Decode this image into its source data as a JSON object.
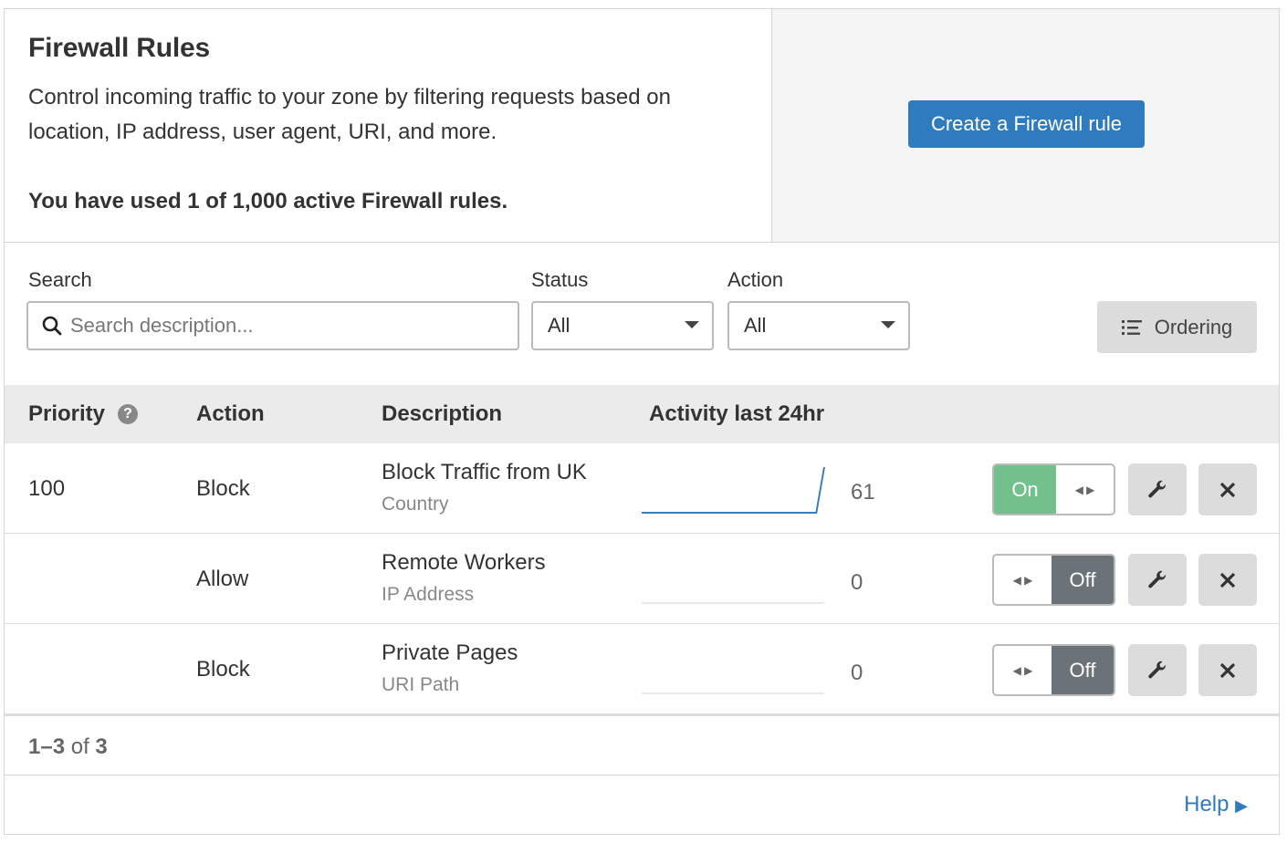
{
  "header": {
    "title": "Firewall Rules",
    "description": "Control incoming traffic to your zone by filtering requests based on location, IP address, user agent, URI, and more.",
    "usage": "You have used 1 of 1,000 active Firewall rules.",
    "create_label": "Create a Firewall rule"
  },
  "filters": {
    "search_label": "Search",
    "search_placeholder": "Search description...",
    "status_label": "Status",
    "status_value": "All",
    "action_label": "Action",
    "action_value": "All",
    "ordering_label": "Ordering"
  },
  "table": {
    "columns": [
      "Priority",
      "Action",
      "Description",
      "Activity last 24hr"
    ],
    "rows": [
      {
        "priority": "100",
        "action": "Block",
        "description": "Block Traffic from UK",
        "type": "Country",
        "activity": "61",
        "enabled": true,
        "toggle_label": "On",
        "sparkline": [
          0,
          0,
          0,
          0,
          0,
          0,
          0,
          0,
          0,
          0,
          0,
          0,
          0,
          0,
          0,
          0,
          0,
          0,
          0,
          0,
          0,
          0,
          0,
          61
        ]
      },
      {
        "priority": "",
        "action": "Allow",
        "description": "Remote Workers",
        "type": "IP Address",
        "activity": "0",
        "enabled": false,
        "toggle_label": "Off",
        "sparkline": [
          0,
          0,
          0,
          0,
          0,
          0,
          0,
          0,
          0,
          0,
          0,
          0,
          0,
          0,
          0,
          0,
          0,
          0,
          0,
          0,
          0,
          0,
          0,
          0
        ]
      },
      {
        "priority": "",
        "action": "Block",
        "description": "Private Pages",
        "type": "URI Path",
        "activity": "0",
        "enabled": false,
        "toggle_label": "Off",
        "sparkline": [
          0,
          0,
          0,
          0,
          0,
          0,
          0,
          0,
          0,
          0,
          0,
          0,
          0,
          0,
          0,
          0,
          0,
          0,
          0,
          0,
          0,
          0,
          0,
          0
        ]
      }
    ]
  },
  "pagination": {
    "range": "1–3",
    "of": "of",
    "total": "3"
  },
  "help_label": "Help",
  "colors": {
    "primary": "#2f7bbf",
    "on": "#72c18d",
    "off": "#6c7378"
  }
}
